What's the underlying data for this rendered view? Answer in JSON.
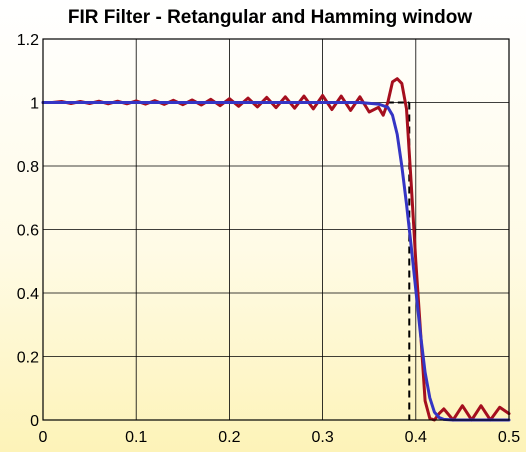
{
  "chart_data": {
    "type": "line",
    "title": "FIR Filter - Retangular and Hamming window",
    "xlabel": "",
    "ylabel": "",
    "xlim": [
      0,
      0.5
    ],
    "ylim": [
      0,
      1.2
    ],
    "xticks": [
      "0",
      "0.1",
      "0.2",
      "0.3",
      "0.4",
      "0.5"
    ],
    "yticks": [
      "0",
      "0.2",
      "0.4",
      "0.6",
      "0.8",
      "1",
      "1.2"
    ],
    "grid": true,
    "legend": "none",
    "cutoff_x": 0.393,
    "series": [
      {
        "color": "#a50f1e",
        "x": [
          0,
          0.01,
          0.02,
          0.03,
          0.04,
          0.05,
          0.06,
          0.07,
          0.08,
          0.09,
          0.1,
          0.11,
          0.12,
          0.13,
          0.14,
          0.15,
          0.16,
          0.17,
          0.18,
          0.19,
          0.2,
          0.21,
          0.22,
          0.23,
          0.24,
          0.25,
          0.26,
          0.27,
          0.28,
          0.29,
          0.3,
          0.31,
          0.32,
          0.33,
          0.34,
          0.35,
          0.36,
          0.365,
          0.37,
          0.375,
          0.38,
          0.385,
          0.39,
          0.395,
          0.4,
          0.405,
          0.41,
          0.415,
          0.42,
          0.425,
          0.43,
          0.44,
          0.45,
          0.46,
          0.47,
          0.48,
          0.49,
          0.5
        ],
        "y": [
          1.0,
          1.0,
          1.003,
          0.997,
          1.003,
          0.997,
          1.004,
          0.996,
          1.004,
          0.996,
          1.005,
          0.995,
          1.006,
          0.994,
          1.007,
          0.993,
          1.008,
          0.992,
          1.01,
          0.99,
          1.012,
          0.988,
          1.014,
          0.986,
          1.016,
          0.984,
          1.018,
          0.982,
          1.02,
          0.98,
          1.022,
          0.978,
          1.02,
          0.975,
          1.018,
          0.97,
          0.985,
          0.96,
          1.0,
          1.065,
          1.075,
          1.06,
          0.98,
          0.75,
          0.5,
          0.28,
          0.06,
          0.005,
          0.0,
          0.02,
          0.035,
          0.0,
          0.045,
          0.0,
          0.045,
          0.0,
          0.04,
          0.02
        ]
      },
      {
        "color": "#3535c4",
        "x": [
          0,
          0.05,
          0.1,
          0.15,
          0.2,
          0.25,
          0.3,
          0.34,
          0.36,
          0.37,
          0.375,
          0.38,
          0.385,
          0.39,
          0.395,
          0.4,
          0.405,
          0.41,
          0.415,
          0.42,
          0.425,
          0.43,
          0.44,
          0.45,
          0.5
        ],
        "y": [
          1.0,
          1.0,
          1.0,
          1.0,
          1.0,
          1.0,
          1.0,
          1.0,
          0.995,
          0.985,
          0.96,
          0.9,
          0.8,
          0.68,
          0.55,
          0.41,
          0.27,
          0.15,
          0.07,
          0.025,
          0.008,
          0.002,
          0.0,
          0.0,
          0.0
        ]
      }
    ]
  }
}
